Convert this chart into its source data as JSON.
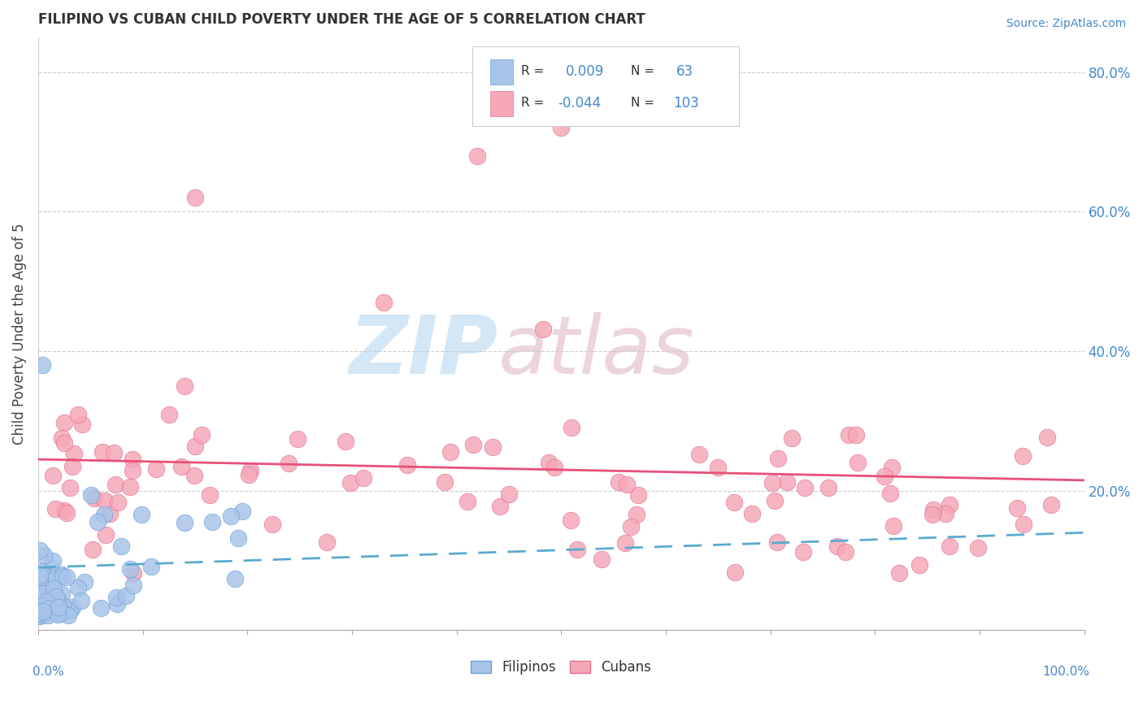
{
  "title": "FILIPINO VS CUBAN CHILD POVERTY UNDER THE AGE OF 5 CORRELATION CHART",
  "source": "Source: ZipAtlas.com",
  "ylabel": "Child Poverty Under the Age of 5",
  "xlim": [
    0.0,
    1.0
  ],
  "ylim": [
    0.0,
    0.85
  ],
  "filipino_R": 0.009,
  "filipino_N": 63,
  "cuban_R": -0.044,
  "cuban_N": 103,
  "filipino_color": "#a8c4e8",
  "cuban_color": "#f5a8b8",
  "filipino_edge_color": "#6a9fd8",
  "cuban_edge_color": "#e07090",
  "filipino_line_color": "#5aaacf",
  "cuban_line_color": "#e8507a",
  "watermark_zip_color": "#b8d8f0",
  "watermark_atlas_color": "#e0b8c8",
  "background_color": "#ffffff",
  "grid_color": "#cccccc",
  "tick_label_color": "#4488cc",
  "title_color": "#333333",
  "source_color": "#4488cc",
  "ytick_positions": [
    0.0,
    0.2,
    0.4,
    0.6,
    0.8
  ],
  "ytick_labels": [
    "",
    "20.0%",
    "40.0%",
    "60.0%",
    "80.0%"
  ]
}
